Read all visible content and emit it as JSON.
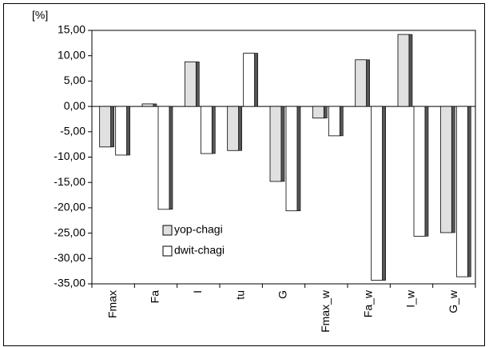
{
  "chart_data": {
    "type": "bar",
    "y_label": "[%]",
    "categories": [
      "Fmax",
      "Fa",
      "I",
      "tu",
      "G",
      "Fmax_w",
      "Fa_w",
      "I_w",
      "G_w"
    ],
    "series": [
      {
        "name": "yop-chagi",
        "color": "#e0e0e0",
        "values": [
          -8.0,
          0.5,
          8.8,
          -8.7,
          -14.8,
          -2.3,
          9.2,
          14.2,
          -24.9
        ]
      },
      {
        "name": "dwit-chagi",
        "color": "#ffffff",
        "values": [
          -9.6,
          -20.3,
          -9.3,
          10.5,
          -20.6,
          -5.8,
          -34.3,
          -25.6,
          -33.6
        ]
      }
    ],
    "ylim": [
      -35,
      15
    ],
    "yticks": [
      {
        "value": 15,
        "label": "15,00"
      },
      {
        "value": 10,
        "label": "10,00"
      },
      {
        "value": 5,
        "label": "5,00"
      },
      {
        "value": 0,
        "label": "0,00"
      },
      {
        "value": -5,
        "label": "-5,00"
      },
      {
        "value": -10,
        "label": "-10,00"
      },
      {
        "value": -15,
        "label": "-15,00"
      },
      {
        "value": -20,
        "label": "-20,00"
      },
      {
        "value": -25,
        "label": "-25,00"
      },
      {
        "value": -30,
        "label": "-30,00"
      },
      {
        "value": -35,
        "label": "-35,00"
      }
    ],
    "legend": "lower-left"
  }
}
